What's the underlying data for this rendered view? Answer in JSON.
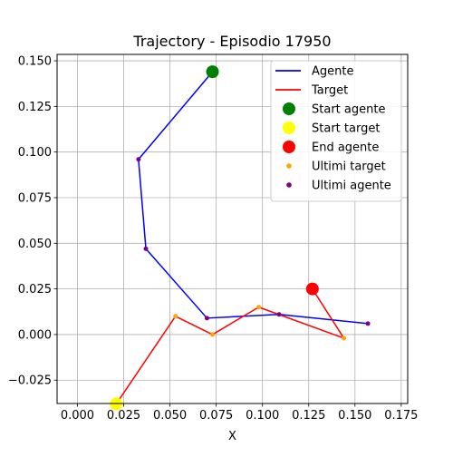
{
  "chart_data": {
    "type": "line",
    "title": "Trajectory - Episodio 17950",
    "xlabel": "X",
    "ylabel": "",
    "xlim": [
      -0.011,
      0.1785
    ],
    "ylim": [
      -0.0378,
      0.1535
    ],
    "grid": true,
    "legend_position": "top-right",
    "x_ticks": [
      0.0,
      0.025,
      0.05,
      0.075,
      0.1,
      0.125,
      0.15,
      0.175
    ],
    "x_tick_labels": [
      "0.000",
      "0.025",
      "0.050",
      "0.075",
      "0.100",
      "0.125",
      "0.150",
      "0.175"
    ],
    "y_ticks": [
      -0.025,
      0.0,
      0.025,
      0.05,
      0.075,
      0.1,
      0.125,
      0.15
    ],
    "y_tick_labels": [
      "−0.025",
      "0.000",
      "0.025",
      "0.050",
      "0.075",
      "0.100",
      "0.125",
      "0.150"
    ],
    "series": [
      {
        "name": "Agente",
        "kind": "line",
        "color": "#0000ff",
        "x": [
          0.073,
          0.033,
          0.037,
          0.07,
          0.109,
          0.157
        ],
        "y": [
          0.144,
          0.096,
          0.047,
          0.009,
          0.011,
          0.006
        ]
      },
      {
        "name": "Target",
        "kind": "line",
        "color": "#ff0000",
        "x": [
          0.021,
          0.053,
          0.073,
          0.098,
          0.144,
          0.127
        ],
        "y": [
          -0.038,
          0.01,
          0.0,
          0.015,
          -0.002,
          0.025
        ]
      },
      {
        "name": "Start agente",
        "kind": "scatter",
        "color": "#008000",
        "marker_size": "large",
        "x": [
          0.073
        ],
        "y": [
          0.144
        ]
      },
      {
        "name": "Start target",
        "kind": "scatter",
        "color": "#ffff00",
        "marker_size": "large",
        "x": [
          0.021
        ],
        "y": [
          -0.038
        ]
      },
      {
        "name": "End agente",
        "kind": "scatter",
        "color": "#ff0000",
        "marker_size": "large",
        "x": [
          0.127
        ],
        "y": [
          0.025
        ]
      },
      {
        "name": "Ultimi target",
        "kind": "scatter",
        "color": "#ffa500",
        "marker_size": "small",
        "x": [
          0.053,
          0.073,
          0.098,
          0.144
        ],
        "y": [
          0.01,
          0.0,
          0.015,
          -0.002
        ]
      },
      {
        "name": "Ultimi agente",
        "kind": "scatter",
        "color": "#800080",
        "marker_size": "small",
        "x": [
          0.033,
          0.037,
          0.07,
          0.109,
          0.157
        ],
        "y": [
          0.096,
          0.047,
          0.009,
          0.011,
          0.006
        ]
      }
    ]
  }
}
